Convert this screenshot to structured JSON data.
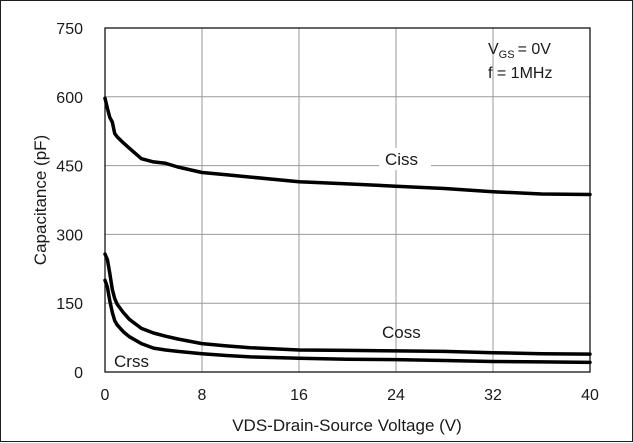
{
  "chart_data": {
    "type": "line",
    "xlabel": "VDS-Drain-Source Voltage (V)",
    "ylabel": "Capacitance (pF)",
    "xlim": [
      0,
      40
    ],
    "ylim": [
      0,
      750
    ],
    "x_ticks": [
      "0",
      "8",
      "16",
      "24",
      "32",
      "40"
    ],
    "y_ticks": [
      "0",
      "150",
      "300",
      "450",
      "600",
      "750"
    ],
    "grid": true,
    "conditions": {
      "vgs_prefix": "V",
      "vgs_sub": "GS",
      "vgs_value": "= 0V",
      "freq": "f = 1MHz"
    },
    "series": [
      {
        "name": "Ciss",
        "x": [
          0,
          0.2,
          0.4,
          0.6,
          0.8,
          1,
          1.5,
          2,
          3,
          4,
          5,
          6,
          8,
          10,
          12,
          16,
          20,
          24,
          28,
          32,
          36,
          40
        ],
        "values": [
          597,
          575,
          555,
          545,
          520,
          513,
          500,
          488,
          465,
          458,
          455,
          447,
          435,
          430,
          425,
          415,
          410,
          405,
          400,
          393,
          388,
          387
        ]
      },
      {
        "name": "Coss",
        "x": [
          0,
          0.2,
          0.4,
          0.6,
          0.8,
          1,
          1.5,
          2,
          3,
          4,
          5,
          6,
          8,
          10,
          12,
          16,
          20,
          24,
          28,
          32,
          36,
          40
        ],
        "values": [
          257,
          245,
          215,
          180,
          160,
          148,
          130,
          115,
          95,
          85,
          78,
          72,
          62,
          57,
          53,
          48,
          47,
          46,
          45,
          42,
          40,
          39
        ]
      },
      {
        "name": "Crss",
        "x": [
          0,
          0.2,
          0.4,
          0.6,
          0.8,
          1,
          1.5,
          2,
          3,
          4,
          5,
          6,
          8,
          10,
          12,
          16,
          20,
          24,
          28,
          32,
          36,
          40
        ],
        "values": [
          200,
          185,
          155,
          130,
          112,
          103,
          88,
          77,
          62,
          52,
          48,
          45,
          40,
          36,
          33,
          30,
          28,
          27,
          25,
          23,
          22,
          21
        ]
      }
    ]
  }
}
